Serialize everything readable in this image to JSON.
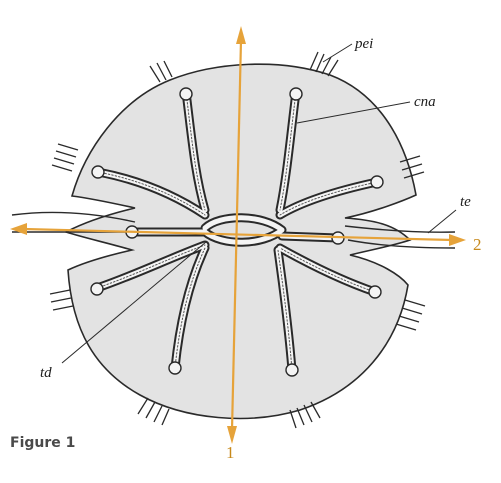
{
  "labels": {
    "pei": "pei",
    "cna": "cna",
    "te": "te",
    "td": "td"
  },
  "axes": {
    "axis_1": "1",
    "axis_2": "2"
  },
  "caption": "Figure 1",
  "colors": {
    "body_fill": "#e3e3e3",
    "outline": "#2a2a2a",
    "axis_arrow": "#e6a33a",
    "axis_number": "#c7891b",
    "caption_text": "#4a4a4a"
  }
}
